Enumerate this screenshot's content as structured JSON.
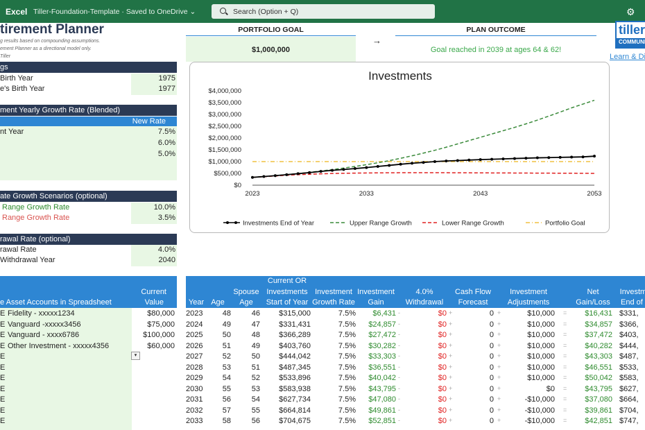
{
  "app": {
    "name": "Excel",
    "document": "Tiller-Foundation-Template  ·  Saved to OneDrive  ⌄",
    "search_placeholder": "Search (Option + Q)"
  },
  "title": "tirement Planner",
  "subtitle_lines": [
    "g results based on compounding assumptions.",
    "ement Planner as a directional model only.",
    "Tiller"
  ],
  "portfolio_goal": {
    "label": "PORTFOLIO GOAL",
    "value": "$1,000,000"
  },
  "arrow": "→",
  "plan_outcome": {
    "label": "PLAN OUTCOME",
    "value": "Goal reached in 2039 at ages 64 & 62!"
  },
  "brand": {
    "logo_line1": "tiller",
    "logo_line2": "COMMUNI",
    "link": "Learn & Di"
  },
  "settings": {
    "header": "gs",
    "rows": [
      {
        "label": "Birth Year",
        "value": "1975"
      },
      {
        "label": "e's Birth Year",
        "value": "1977"
      }
    ]
  },
  "growth": {
    "header": "ment Yearly Growth Rate (Blended)",
    "col": "New Rate",
    "rows": [
      {
        "label": "nt Year",
        "value": "7.5%"
      },
      {
        "label": "",
        "value": "6.0%"
      },
      {
        "label": "",
        "value": "5.0%"
      }
    ]
  },
  "scenarios": {
    "header": "ate Growth Scenarios (optional)",
    "rows": [
      {
        "label": "Range Growth Rate",
        "value": "10.0%",
        "color": "#2e8b2e"
      },
      {
        "label": "Range Growth Rate",
        "value": "3.5%",
        "color": "#d9534f"
      }
    ]
  },
  "withdrawal": {
    "header": "rawal Rate (optional)",
    "rows": [
      {
        "label": "rawal Rate",
        "value": "4.0%"
      },
      {
        "label": "Withdrawal Year",
        "value": "2040"
      }
    ]
  },
  "accounts": {
    "headers": {
      "h1": "Current",
      "h2a": "e  Asset Accounts in Spreadsheet",
      "h2b": "Value"
    },
    "rows": [
      {
        "mark": "E",
        "name": "Fidelity - xxxxx1234",
        "value": "$80,000"
      },
      {
        "mark": "E",
        "name": "Vanguard -xxxxx3456",
        "value": "$75,000"
      },
      {
        "mark": "E",
        "name": "Vanguard - xxxx6786",
        "value": "$100,000"
      },
      {
        "mark": "E",
        "name": "Other Investment - xxxxx4356",
        "value": "$60,000"
      },
      {
        "mark": "E",
        "name": "",
        "value": ""
      },
      {
        "mark": "E",
        "name": "",
        "value": ""
      },
      {
        "mark": "E",
        "name": "",
        "value": ""
      },
      {
        "mark": "E",
        "name": "",
        "value": ""
      },
      {
        "mark": "E",
        "name": "",
        "value": ""
      },
      {
        "mark": "E",
        "name": "",
        "value": ""
      },
      {
        "mark": "E",
        "name": "",
        "value": ""
      }
    ]
  },
  "projection": {
    "headers": [
      [
        "",
        "Year"
      ],
      [
        "",
        "Age"
      ],
      [
        "Spouse",
        "Age"
      ],
      [
        "Investments",
        "Start of Year"
      ],
      [
        "Investment",
        "Growth Rate"
      ],
      [
        "Investment",
        "Gain"
      ],
      [
        "4.0%",
        "Withdrawal"
      ],
      [
        "Cash Flow",
        "Forecast"
      ],
      [
        "Investment",
        "Adjustments"
      ],
      [
        "Net",
        "Gain/Loss"
      ],
      [
        "Investme",
        "End of Y"
      ]
    ],
    "header_top": "Current OR",
    "rows": [
      {
        "year": "2023",
        "age": "48",
        "sage": "46",
        "start": "$315,000",
        "rate": "7.5%",
        "gain": "$6,431",
        "wd": "$0",
        "cf": "0",
        "adj": "$10,000",
        "net": "$16,431",
        "end": "$331,"
      },
      {
        "year": "2024",
        "age": "49",
        "sage": "47",
        "start": "$331,431",
        "rate": "7.5%",
        "gain": "$24,857",
        "wd": "$0",
        "cf": "0",
        "adj": "$10,000",
        "net": "$34,857",
        "end": "$366,"
      },
      {
        "year": "2025",
        "age": "50",
        "sage": "48",
        "start": "$366,289",
        "rate": "7.5%",
        "gain": "$27,472",
        "wd": "$0",
        "cf": "0",
        "adj": "$10,000",
        "net": "$37,472",
        "end": "$403,"
      },
      {
        "year": "2026",
        "age": "51",
        "sage": "49",
        "start": "$403,760",
        "rate": "7.5%",
        "gain": "$30,282",
        "wd": "$0",
        "cf": "0",
        "adj": "$10,000",
        "net": "$40,282",
        "end": "$444,"
      },
      {
        "year": "2027",
        "age": "52",
        "sage": "50",
        "start": "$444,042",
        "rate": "7.5%",
        "gain": "$33,303",
        "wd": "$0",
        "cf": "0",
        "adj": "$10,000",
        "net": "$43,303",
        "end": "$487,"
      },
      {
        "year": "2028",
        "age": "53",
        "sage": "51",
        "start": "$487,345",
        "rate": "7.5%",
        "gain": "$36,551",
        "wd": "$0",
        "cf": "0",
        "adj": "$10,000",
        "net": "$46,551",
        "end": "$533,"
      },
      {
        "year": "2029",
        "age": "54",
        "sage": "52",
        "start": "$533,896",
        "rate": "7.5%",
        "gain": "$40,042",
        "wd": "$0",
        "cf": "0",
        "adj": "$10,000",
        "net": "$50,042",
        "end": "$583,"
      },
      {
        "year": "2030",
        "age": "55",
        "sage": "53",
        "start": "$583,938",
        "rate": "7.5%",
        "gain": "$43,795",
        "wd": "$0",
        "cf": "0",
        "adj": "$0",
        "net": "$43,795",
        "end": "$627,"
      },
      {
        "year": "2031",
        "age": "56",
        "sage": "54",
        "start": "$627,734",
        "rate": "7.5%",
        "gain": "$47,080",
        "wd": "$0",
        "cf": "0",
        "adj": "-$10,000",
        "net": "$37,080",
        "end": "$664,"
      },
      {
        "year": "2032",
        "age": "57",
        "sage": "55",
        "start": "$664,814",
        "rate": "7.5%",
        "gain": "$49,861",
        "wd": "$0",
        "cf": "0",
        "adj": "-$10,000",
        "net": "$39,861",
        "end": "$704,"
      },
      {
        "year": "2033",
        "age": "58",
        "sage": "56",
        "start": "$704,675",
        "rate": "7.5%",
        "gain": "$52,851",
        "wd": "$0",
        "cf": "0",
        "adj": "-$10,000",
        "net": "$42,851",
        "end": "$747,"
      }
    ]
  },
  "chart_data": {
    "type": "line",
    "title": "Investments",
    "x": [
      2023,
      2024,
      2025,
      2026,
      2027,
      2028,
      2029,
      2030,
      2031,
      2032,
      2033,
      2034,
      2035,
      2036,
      2037,
      2038,
      2039,
      2040,
      2041,
      2042,
      2043,
      2044,
      2045,
      2046,
      2047,
      2048,
      2049,
      2050,
      2051,
      2052,
      2053
    ],
    "xticks": [
      "2023",
      "2033",
      "2043",
      "2053"
    ],
    "yticks": [
      "$4,000,000",
      "$3,500,000",
      "$3,000,000",
      "$2,500,000",
      "$2,000,000",
      "$1,500,000",
      "$1,000,000",
      "$500,000",
      "$0"
    ],
    "ylim": [
      0,
      4000000
    ],
    "legend_position": "bottom",
    "series": [
      {
        "name": "Investments End of Year",
        "color": "#000000",
        "style": "solid-markers",
        "values": [
          331431,
          366289,
          403760,
          444042,
          487345,
          533896,
          583938,
          627734,
          664814,
          704675,
          747526,
          794000,
          840000,
          888000,
          930000,
          965000,
          1000000,
          1025000,
          1045000,
          1065000,
          1085000,
          1100000,
          1115000,
          1130000,
          1145000,
          1160000,
          1170000,
          1180000,
          1190000,
          1200000,
          1230000
        ]
      },
      {
        "name": "Upper Range Growth",
        "color": "#3a8a3a",
        "style": "dashed",
        "values": [
          331431,
          366000,
          404000,
          446000,
          492000,
          543000,
          600000,
          660000,
          726000,
          795000,
          870000,
          950000,
          1040000,
          1140000,
          1245000,
          1360000,
          1480000,
          1610000,
          1750000,
          1890000,
          2030000,
          2170000,
          2310000,
          2450000,
          2600000,
          2760000,
          2930000,
          3100000,
          3280000,
          3440000,
          3600000
        ]
      },
      {
        "name": "Lower Range Growth",
        "color": "#e02020",
        "style": "dashed",
        "values": [
          331431,
          360000,
          390000,
          420000,
          445000,
          465000,
          480000,
          495000,
          505000,
          512000,
          518000,
          522000,
          525000,
          528000,
          530000,
          530000,
          530000,
          528000,
          526000,
          524000,
          522000,
          520000,
          518000,
          516000,
          514000,
          512000,
          510000,
          508000,
          506000,
          504000,
          500000
        ]
      },
      {
        "name": "Portfolio Goal",
        "color": "#f0c040",
        "style": "dashdot",
        "values": [
          1000000,
          1000000,
          1000000,
          1000000,
          1000000,
          1000000,
          1000000,
          1000000,
          1000000,
          1000000,
          1000000,
          1000000,
          1000000,
          1000000,
          1000000,
          1000000,
          1000000,
          1000000,
          1000000,
          1000000,
          1000000,
          1000000,
          1000000,
          1000000,
          1000000,
          1000000,
          1000000,
          1000000,
          1000000,
          1000000,
          1000000
        ]
      }
    ]
  }
}
